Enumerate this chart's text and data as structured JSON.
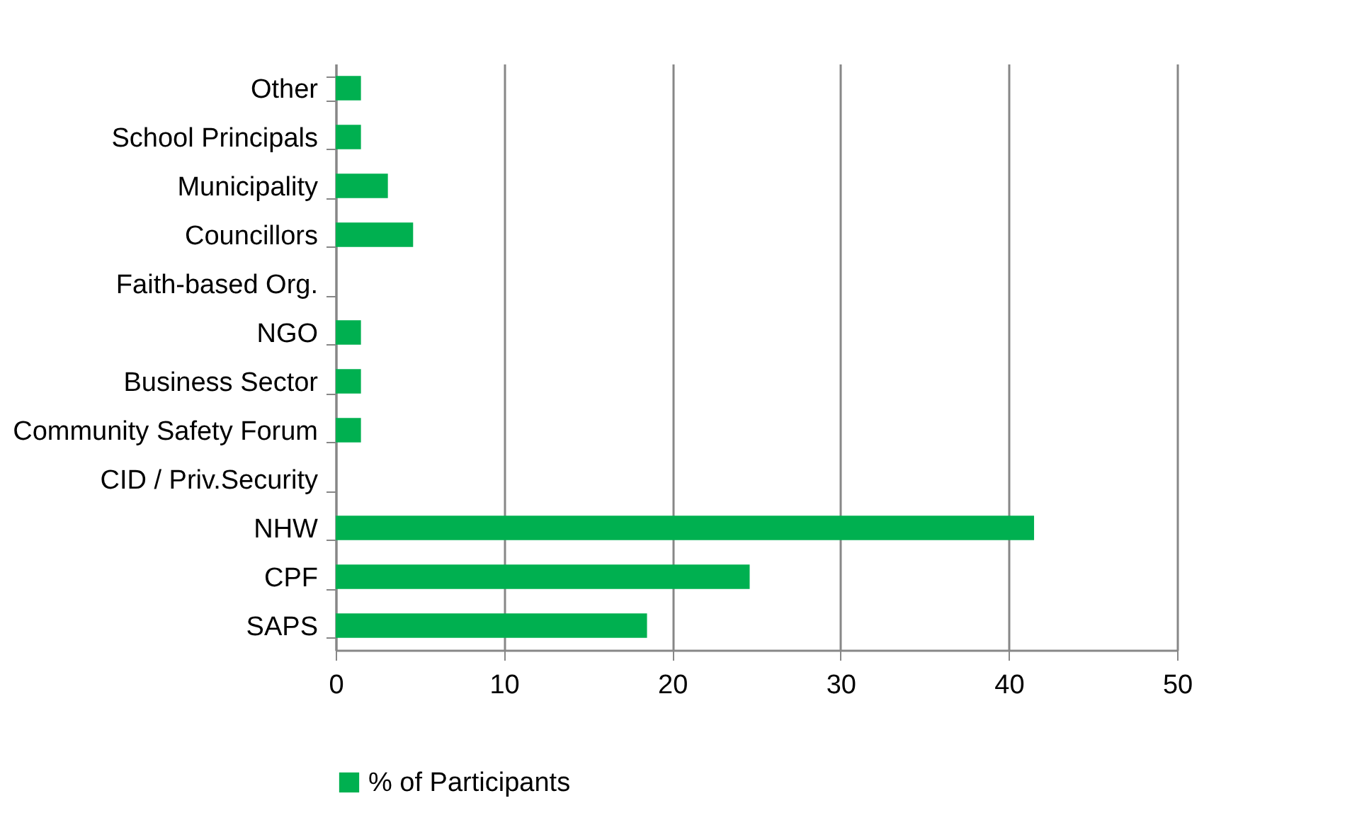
{
  "chart_data": {
    "type": "bar",
    "orientation": "horizontal",
    "categories": [
      "Other",
      "School Principals",
      "Municipality",
      "Councillors",
      "Faith-based Org.",
      "NGO",
      "Business Sector",
      "Community Safety Forum",
      "CID / Priv.Security",
      "NHW",
      "CPF",
      "SAPS"
    ],
    "series": [
      {
        "name": "% of Participants",
        "color": "#00b050",
        "values": [
          1.5,
          1.5,
          3.1,
          4.6,
          0,
          1.5,
          1.5,
          1.5,
          0,
          41.5,
          24.6,
          18.5
        ]
      }
    ],
    "xlim": [
      0,
      50
    ],
    "xticks": [
      0,
      10,
      20,
      30,
      40,
      50
    ],
    "grid": "x",
    "legend": "bottom"
  }
}
